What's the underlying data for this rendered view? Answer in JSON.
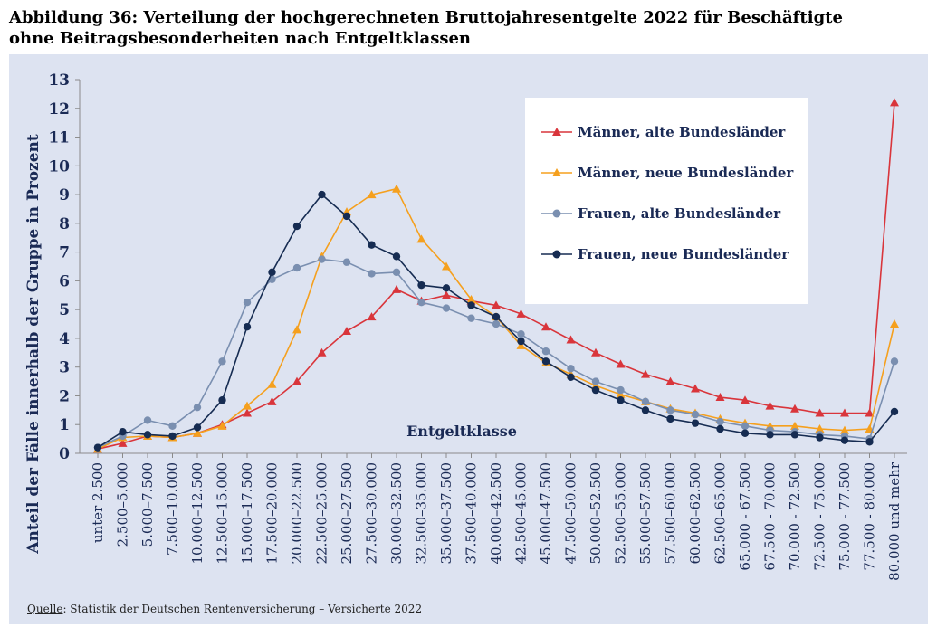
{
  "title_line1": "Abbildung 36: Verteilung der hochgerechneten Bruttojahresentgelte 2022 für Beschäftigte",
  "title_line2": "ohne Beitragsbesonderheiten nach Entgeltklassen",
  "source_label": "Quelle",
  "source_text": ": Statistik der Deutschen Rentenversicherung – Versicherte 2022",
  "chart_data": {
    "type": "line",
    "ylabel": "Anteil der Fälle innerhalb der Gruppe in Prozent",
    "xlabel": "Entgeltklasse",
    "ylim": [
      0,
      13
    ],
    "yticks": [
      0,
      1,
      2,
      3,
      4,
      5,
      6,
      7,
      8,
      9,
      10,
      11,
      12,
      13
    ],
    "legend_position": "top-right",
    "grid": false,
    "categories": [
      "unter 2.500",
      "2.500–5.000",
      "5.000–7.500",
      "7.500–10.000",
      "10.000–12.500",
      "12.500–15.000",
      "15.000–17.500",
      "17.500–20.000",
      "20.000–22.500",
      "22.500–25.000",
      "25.000–27.500",
      "27.500–30.000",
      "30.000–32.500",
      "32.500–35.000",
      "35.000–37.500",
      "37.500–40.000",
      "40.000–42.500",
      "42.500–45.000",
      "45.000–47.500",
      "47.500–50.000",
      "50.000–52.500",
      "52.500–55.000",
      "55.000–57.500",
      "57.500–60.000",
      "60.000–62.500",
      "62.500–65.000",
      "65.000 - 67.500",
      "67.500 - 70.000",
      "70.000 - 72.500",
      "72.500 - 75.000",
      "75.000 - 77.500",
      "77.500 - 80.000",
      "80.000 und mehr"
    ],
    "series": [
      {
        "name": "Männer, alte Bundesländer",
        "color": "#d9353b",
        "marker": "triangle",
        "values": [
          0.15,
          0.35,
          0.6,
          0.55,
          0.7,
          1.0,
          1.4,
          1.8,
          2.5,
          3.5,
          4.25,
          4.75,
          5.7,
          5.3,
          5.5,
          5.3,
          5.15,
          4.85,
          4.4,
          3.95,
          3.5,
          3.1,
          2.75,
          2.5,
          2.25,
          1.95,
          1.85,
          1.65,
          1.55,
          1.4,
          1.4,
          1.4,
          12.2
        ]
      },
      {
        "name": "Männer, neue Bundesländer",
        "color": "#f5a01e",
        "marker": "triangle",
        "values": [
          0.15,
          0.55,
          0.6,
          0.55,
          0.7,
          0.95,
          1.65,
          2.4,
          4.3,
          6.85,
          8.4,
          9.0,
          9.2,
          7.45,
          6.5,
          5.35,
          4.75,
          3.75,
          3.15,
          2.75,
          2.35,
          2.05,
          1.8,
          1.55,
          1.4,
          1.2,
          1.05,
          0.95,
          0.95,
          0.85,
          0.8,
          0.85,
          4.5
        ]
      },
      {
        "name": "Frauen, alte Bundesländer",
        "color": "#7a8fb0",
        "marker": "circle",
        "values": [
          0.2,
          0.6,
          1.15,
          0.95,
          1.6,
          3.2,
          5.25,
          6.05,
          6.45,
          6.75,
          6.65,
          6.25,
          6.3,
          5.25,
          5.05,
          4.7,
          4.5,
          4.15,
          3.55,
          2.95,
          2.5,
          2.2,
          1.8,
          1.5,
          1.35,
          1.1,
          0.95,
          0.8,
          0.75,
          0.65,
          0.6,
          0.5,
          3.2
        ]
      },
      {
        "name": "Frauen, neue Bundesländer",
        "color": "#162c52",
        "marker": "circle",
        "values": [
          0.2,
          0.75,
          0.65,
          0.6,
          0.9,
          1.85,
          4.4,
          6.3,
          7.9,
          9.0,
          8.25,
          7.25,
          6.85,
          5.85,
          5.75,
          5.15,
          4.75,
          3.9,
          3.2,
          2.65,
          2.2,
          1.85,
          1.5,
          1.2,
          1.05,
          0.85,
          0.7,
          0.65,
          0.65,
          0.55,
          0.45,
          0.4,
          1.45
        ]
      }
    ]
  }
}
